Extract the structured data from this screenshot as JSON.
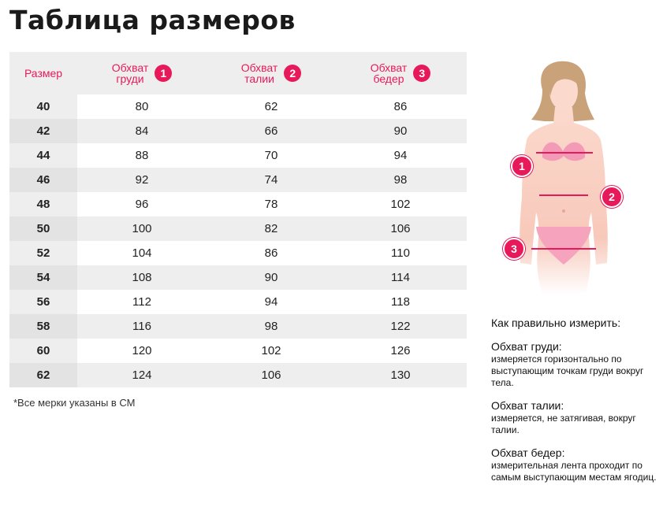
{
  "title": "Таблица размеров",
  "table": {
    "headers": {
      "size": "Размер",
      "col1": {
        "line1": "Обхват",
        "line2": "груди",
        "num": "1"
      },
      "col2": {
        "line1": "Обхват",
        "line2": "талии",
        "num": "2"
      },
      "col3": {
        "line1": "Обхват",
        "line2": "бедер",
        "num": "3"
      }
    },
    "rows": [
      [
        "40",
        "80",
        "62",
        "86"
      ],
      [
        "42",
        "84",
        "66",
        "90"
      ],
      [
        "44",
        "88",
        "70",
        "94"
      ],
      [
        "46",
        "92",
        "74",
        "98"
      ],
      [
        "48",
        "96",
        "78",
        "102"
      ],
      [
        "50",
        "100",
        "82",
        "106"
      ],
      [
        "52",
        "104",
        "86",
        "110"
      ],
      [
        "54",
        "108",
        "90",
        "114"
      ],
      [
        "56",
        "112",
        "94",
        "118"
      ],
      [
        "58",
        "116",
        "98",
        "122"
      ],
      [
        "60",
        "120",
        "102",
        "126"
      ],
      [
        "62",
        "124",
        "106",
        "130"
      ]
    ]
  },
  "note": "*Все мерки указаны в СМ",
  "figure": {
    "badge1": "1",
    "badge2": "2",
    "badge3": "3"
  },
  "howto": {
    "heading": "Как правильно измерить:",
    "sections": [
      {
        "title": "Обхват груди:",
        "text": "измеряется горизонтально по выступающим точкам груди вокруг тела."
      },
      {
        "title": "Обхват талии:",
        "text": "измеряется, не затягивая, вокруг талии."
      },
      {
        "title": "Обхват бедер:",
        "text": "измерительная лента проходит по самым выступающим местам ягодиц."
      }
    ]
  },
  "colors": {
    "accent": "#e8195a",
    "row_shade": "#eeeeee"
  }
}
